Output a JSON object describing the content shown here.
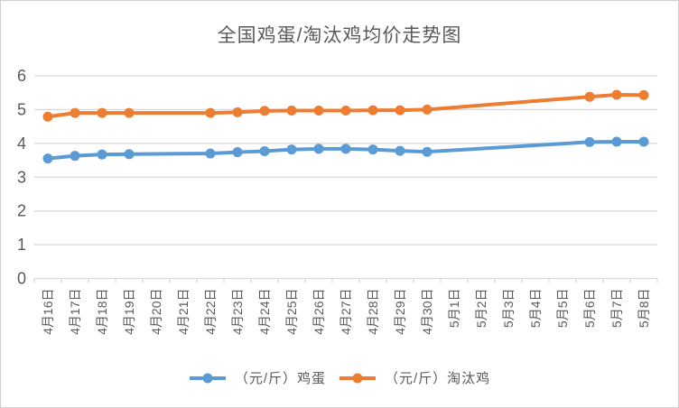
{
  "window": {
    "background": "#FFFFFF",
    "border_color": "#CFCFCF"
  },
  "styles": {
    "grid_color": "#D9D9D9",
    "axis_text_color": "#595959",
    "title_color": "#595959"
  },
  "chart_data": {
    "type": "line",
    "title": "全国鸡蛋/淘汰鸡均价走势图",
    "xlabel": "",
    "ylabel": "",
    "grid": true,
    "legend_position": "bottom",
    "gap_policy": "connect-across-missing",
    "marker": "filled-circle",
    "y_axis": {
      "min": 0,
      "max": 6,
      "step": 1,
      "tick_labels": [
        "0",
        "1",
        "2",
        "3",
        "4",
        "5",
        "6"
      ]
    },
    "categories": [
      "4月16日",
      "4月17日",
      "4月18日",
      "4月19日",
      "4月20日",
      "4月21日",
      "4月22日",
      "4月23日",
      "4月24日",
      "4月25日",
      "4月26日",
      "4月27日",
      "4月28日",
      "4月29日",
      "4月30日",
      "5月1日",
      "5月2日",
      "5月3日",
      "5月4日",
      "5月5日",
      "5月6日",
      "5月7日",
      "5月8日"
    ],
    "series": [
      {
        "name": "（元/斤）鸡蛋",
        "color": "#5B9BD5",
        "values": [
          3.55,
          3.63,
          3.67,
          3.68,
          null,
          null,
          3.7,
          3.74,
          3.77,
          3.82,
          3.84,
          3.84,
          3.82,
          3.78,
          3.75,
          null,
          null,
          null,
          null,
          null,
          4.04,
          4.05,
          4.05
        ]
      },
      {
        "name": "（元/斤）淘汰鸡",
        "color": "#ED7D31",
        "values": [
          4.79,
          4.9,
          4.9,
          4.9,
          null,
          null,
          4.9,
          4.92,
          4.96,
          4.97,
          4.97,
          4.97,
          4.98,
          4.98,
          5.0,
          null,
          null,
          null,
          null,
          null,
          5.38,
          5.44,
          5.43
        ]
      }
    ]
  }
}
